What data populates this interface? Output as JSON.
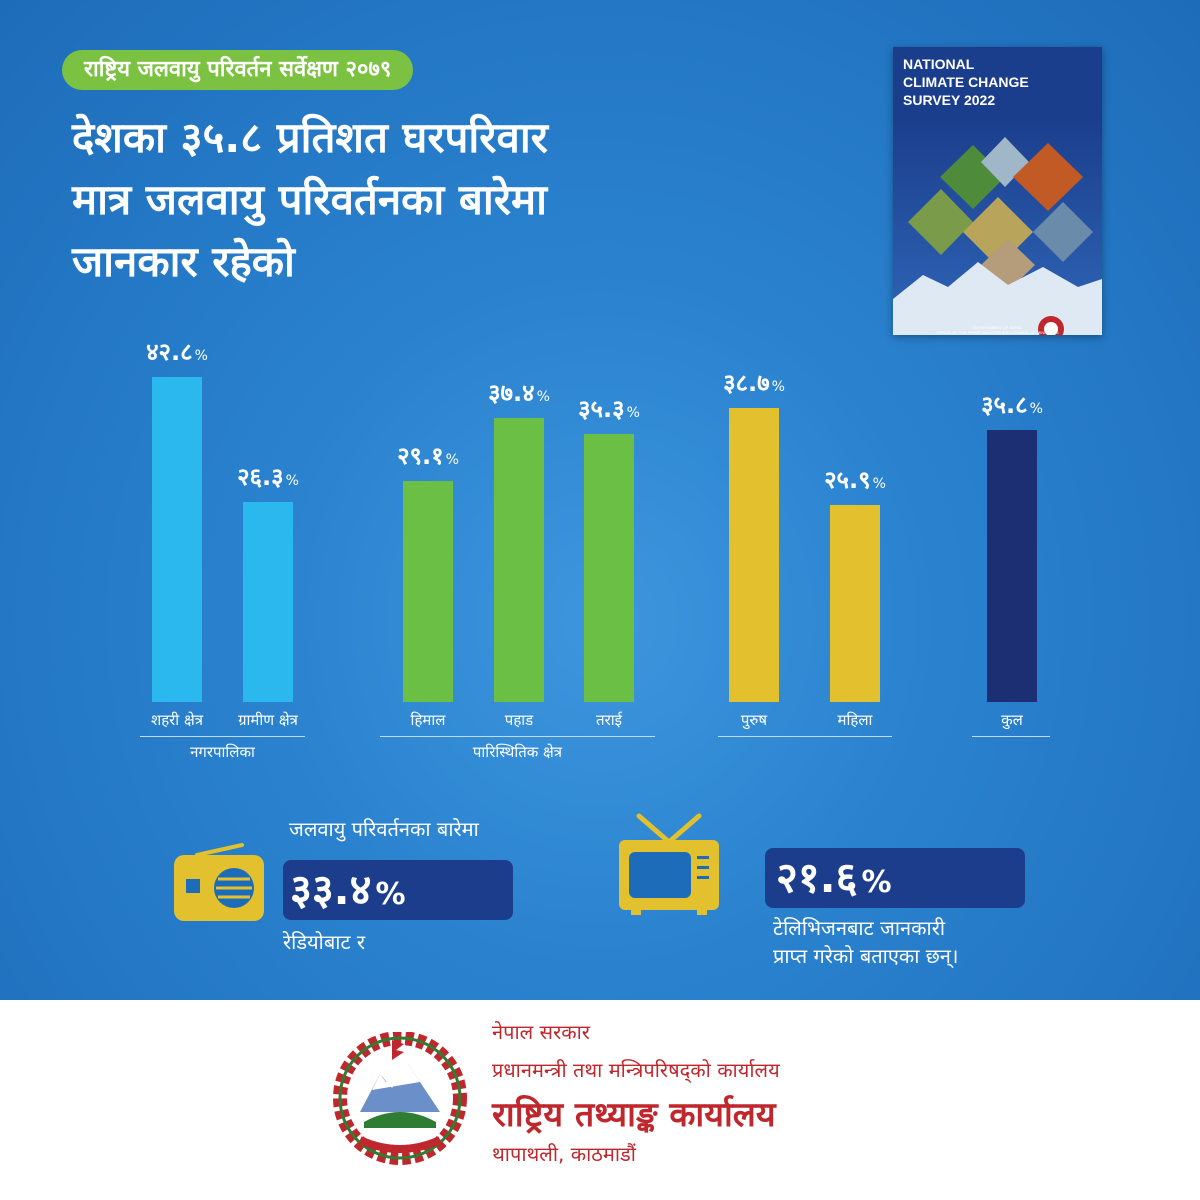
{
  "header": {
    "survey_tag": "राष्ट्रिय जलवायु परिवर्तन सर्वेक्षण २०७९",
    "headline_lines": [
      "देशका ३५.८ प्रतिशत घरपरिवार",
      "मात्र जलवायु परिवर्तनका बारेमा",
      "जानकार रहेको"
    ]
  },
  "report_cover": {
    "title_lines": [
      "NATIONAL",
      "CLIMATE CHANGE",
      "SURVEY 2022"
    ],
    "publisher_lines": [
      "GOVERNMENT OF NEPAL",
      "OFFICE OF THE PRIME MINISTER AND COUNCIL OF MINISTERS",
      "NATIONAL STATISTICS OFFICE"
    ]
  },
  "chart_data": {
    "type": "bar",
    "value_suffix": "%",
    "ylim": [
      0,
      45
    ],
    "groups": [
      {
        "name": "नगरपालिका",
        "color": "#2bb8ee",
        "bars": [
          {
            "category": "शहरी क्षेत्र",
            "value": 42.8,
            "label": "४२.८"
          },
          {
            "category": "ग्रामीण क्षेत्र",
            "value": 26.3,
            "label": "२६.३"
          }
        ]
      },
      {
        "name": "पारिस्थितिक क्षेत्र",
        "color": "#6cbf45",
        "bars": [
          {
            "category": "हिमाल",
            "value": 29.1,
            "label": "२९.१"
          },
          {
            "category": "पहाड",
            "value": 37.4,
            "label": "३७.४"
          },
          {
            "category": "तराई",
            "value": 35.3,
            "label": "३५.३"
          }
        ]
      },
      {
        "name": "",
        "color": "#e3c02e",
        "bars": [
          {
            "category": "पुरुष",
            "value": 38.7,
            "label": "३८.७"
          },
          {
            "category": "महिला",
            "value": 25.9,
            "label": "२५.९"
          }
        ]
      },
      {
        "name": "",
        "color": "#1c2f73",
        "bars": [
          {
            "category": "कुल",
            "value": 35.8,
            "label": "३५.८"
          }
        ]
      }
    ]
  },
  "media": {
    "heading": "जलवायु परिवर्तनका बारेमा",
    "radio": {
      "icon": "radio-icon",
      "value": "३३.४",
      "suffix": "%",
      "caption": "रेडियोबाट र"
    },
    "tv": {
      "icon": "tv-icon",
      "value": "२१.६",
      "suffix": "%",
      "caption_lines": [
        "टेलिभिजनबाट जानकारी",
        "प्राप्त गरेको बताएका छन्।"
      ]
    },
    "icon_color": "#e3c02e"
  },
  "footer": {
    "emblem_icon": "nepal-emblem-icon",
    "line1": "नेपाल सरकार",
    "line2": "प्रधानमन्त्री तथा मन्त्रिपरिषद्को कार्यालय",
    "line3": "राष्ट्रिय तथ्याङ्क कार्यालय",
    "line4": "थापाथली, काठमाडौं",
    "text_color": "#c0272d"
  }
}
